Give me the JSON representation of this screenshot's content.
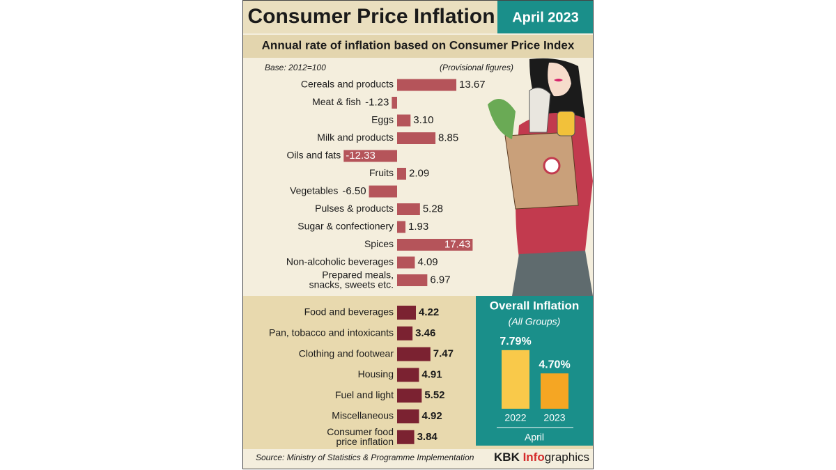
{
  "header": {
    "title": "Consumer Price Inflation",
    "date": "April 2023",
    "subtitle": "Annual rate of inflation based on Consumer Price Index",
    "base": "Base: 2012=100",
    "note": "(Provisional figures)"
  },
  "chart_data": [
    {
      "type": "bar",
      "categories": [
        "Cereals and products",
        "Meat & fish",
        "Eggs",
        "Milk and products",
        "Oils and fats",
        "Fruits",
        "Vegetables",
        "Pulses & products",
        "Sugar & confectionery",
        "Spices",
        "Non-alcoholic beverages",
        "Prepared meals,\nsnacks, sweets etc."
      ],
      "values": [
        13.67,
        -1.23,
        3.1,
        8.85,
        -12.33,
        2.09,
        -6.5,
        5.28,
        1.93,
        17.43,
        4.09,
        6.97
      ],
      "value_labels": [
        "13.67",
        "-1.23",
        "3.10",
        "8.85",
        "-12.33",
        "2.09",
        "-6.50",
        "5.28",
        "1.93",
        "17.43",
        "4.09",
        "6.97"
      ],
      "color": "#b5545a"
    },
    {
      "type": "bar",
      "categories": [
        "Food and beverages",
        "Pan, tobacco and intoxicants",
        "Clothing and footwear",
        "Housing",
        "Fuel and light",
        "Miscellaneous",
        "Consumer food\nprice inflation"
      ],
      "values": [
        4.22,
        3.46,
        7.47,
        4.91,
        5.52,
        4.92,
        3.84
      ],
      "color": "#7b2231"
    },
    {
      "type": "column",
      "title": "Overall Inflation",
      "subtitle": "(All Groups)",
      "categories": [
        "2022",
        "2023"
      ],
      "values": [
        7.79,
        4.7
      ],
      "value_labels": [
        "7.79%",
        "4.70%"
      ],
      "colors": [
        "#f9c94a",
        "#f5a623"
      ],
      "xlabel": "April"
    }
  ],
  "footer": {
    "source": "Source: Ministry of Statistics & Programme Implementation",
    "brand": [
      "KBK ",
      "Info",
      "graphics"
    ]
  }
}
